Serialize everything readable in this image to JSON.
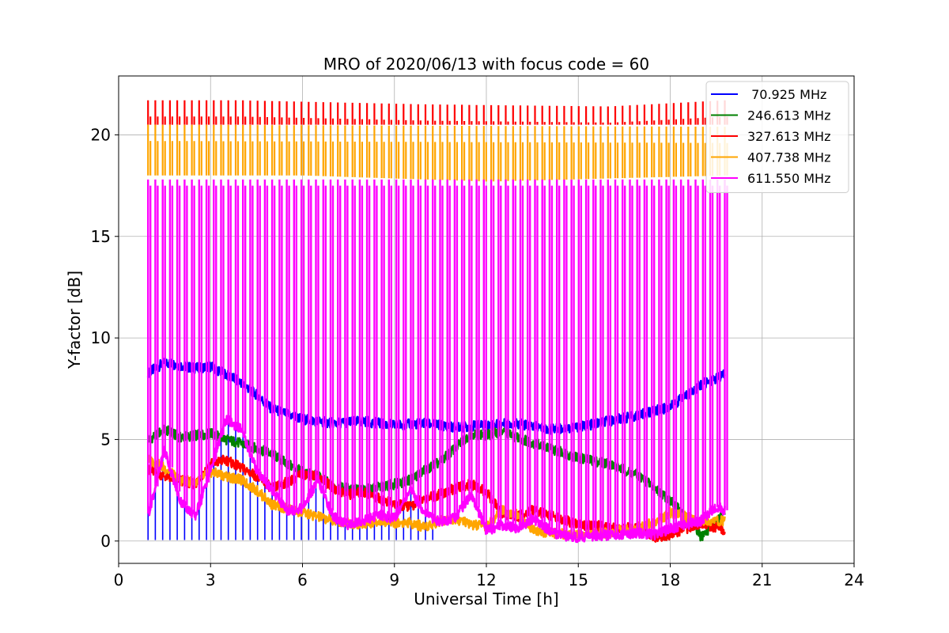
{
  "chart_data": {
    "type": "line",
    "title": "MRO of 2020/06/13 with focus code = 60",
    "xlabel": "Universal Time [h]",
    "ylabel": "Y-factor [dB]",
    "xlim": [
      0,
      24
    ],
    "ylim": [
      -1.1,
      22.9
    ],
    "xticks": [
      0,
      3,
      6,
      9,
      12,
      15,
      18,
      21,
      24
    ],
    "yticks": [
      0,
      5,
      10,
      15,
      20
    ],
    "grid": true,
    "legend_position": "top-right",
    "pulse": {
      "start_hour": 0.96,
      "end_hour": 19.78,
      "count": 80
    },
    "series": [
      {
        "name": " 70.925 MHz",
        "color": "#0000ff",
        "baseline_x": [
          1.0,
          1.5,
          2.5,
          3.0,
          3.5,
          4.0,
          4.5,
          5.0,
          6.0,
          7.0,
          8.0,
          9.0,
          10.0,
          11.0,
          12.0,
          13.0,
          14.0,
          15.0,
          16.0,
          17.0,
          18.0,
          19.0,
          19.8
        ],
        "baseline_y": [
          8.3,
          8.8,
          8.5,
          8.6,
          8.2,
          7.8,
          7.2,
          6.5,
          6.0,
          5.8,
          5.9,
          5.7,
          5.8,
          5.6,
          5.7,
          5.8,
          5.5,
          5.6,
          5.9,
          6.2,
          6.6,
          7.7,
          8.2
        ],
        "pulse_low": 0.05,
        "pulse_low_until_hour": 10.3
      },
      {
        "name": "246.613 MHz",
        "color": "#008000",
        "baseline_x": [
          1.0,
          1.5,
          2.0,
          3.0,
          3.5,
          4.0,
          5.0,
          5.5,
          6.0,
          6.5,
          7.0,
          8.0,
          9.0,
          9.5,
          10.0,
          10.5,
          11.0,
          11.5,
          12.0,
          12.5,
          13.0,
          14.0,
          15.0,
          16.0,
          17.0,
          17.5,
          18.0,
          18.5,
          19.0,
          19.8
        ],
        "baseline_y": [
          5.0,
          5.5,
          5.1,
          5.3,
          5.0,
          4.8,
          4.3,
          3.8,
          3.4,
          3.2,
          2.7,
          2.5,
          2.8,
          3.0,
          3.5,
          3.9,
          4.6,
          5.3,
          5.2,
          5.4,
          5.1,
          4.6,
          4.1,
          3.8,
          3.2,
          2.6,
          2.0,
          1.2,
          0.2,
          1.4
        ]
      },
      {
        "name": "327.613 MHz",
        "color": "#ff0000",
        "baseline_x": [
          1.0,
          1.5,
          2.0,
          2.5,
          3.0,
          3.5,
          4.0,
          4.5,
          5.0,
          5.5,
          6.0,
          6.5,
          7.0,
          7.5,
          8.0,
          8.5,
          9.0,
          9.5,
          10.0,
          10.5,
          11.0,
          11.5,
          12.0,
          12.5,
          13.0,
          13.5,
          14.0,
          15.0,
          16.0,
          17.0,
          17.5,
          18.0,
          18.5,
          19.0,
          19.8
        ],
        "baseline_y": [
          3.5,
          3.2,
          3.0,
          2.8,
          3.8,
          4.0,
          3.6,
          3.2,
          2.6,
          2.9,
          3.3,
          3.2,
          2.6,
          2.3,
          2.4,
          2.1,
          1.8,
          1.7,
          2.1,
          2.3,
          2.6,
          2.8,
          2.4,
          1.4,
          1.2,
          1.5,
          1.3,
          0.8,
          0.7,
          0.6,
          0.2,
          0.3,
          0.6,
          0.9,
          0.5
        ]
      },
      {
        "name": "407.738 MHz",
        "color": "#ffa500",
        "baseline_x": [
          1.0,
          1.5,
          2.0,
          2.5,
          3.0,
          3.5,
          4.0,
          4.5,
          5.0,
          5.5,
          6.0,
          6.5,
          7.0,
          7.5,
          8.0,
          8.5,
          9.0,
          9.5,
          10.0,
          10.5,
          11.0,
          11.5,
          12.0,
          12.5,
          13.0,
          13.5,
          14.0,
          15.0,
          16.0,
          17.0,
          17.5,
          18.0,
          18.5,
          19.0,
          19.8
        ],
        "baseline_y": [
          4.0,
          3.6,
          3.0,
          2.9,
          3.4,
          3.2,
          3.0,
          2.5,
          1.8,
          1.6,
          1.4,
          1.2,
          1.0,
          0.9,
          0.8,
          1.0,
          0.9,
          0.9,
          0.7,
          1.0,
          1.1,
          0.8,
          0.7,
          1.5,
          1.3,
          0.6,
          0.4,
          0.3,
          0.4,
          0.7,
          0.9,
          1.4,
          1.2,
          1.0,
          1.0
        ]
      },
      {
        "name": "611.550 MHz",
        "color": "#ff00ff",
        "baseline_x": [
          1.0,
          1.5,
          2.0,
          2.5,
          3.0,
          3.5,
          4.0,
          4.5,
          5.0,
          5.5,
          6.0,
          6.5,
          7.0,
          7.5,
          8.0,
          8.5,
          9.0,
          9.5,
          10.0,
          10.5,
          11.0,
          11.5,
          12.0,
          12.5,
          13.0,
          13.5,
          14.0,
          14.5,
          15.0,
          16.0,
          17.0,
          17.5,
          18.0,
          18.5,
          19.0,
          19.5,
          19.8
        ],
        "baseline_y": [
          1.5,
          4.5,
          2.0,
          1.2,
          3.5,
          6.0,
          5.5,
          3.5,
          2.5,
          1.5,
          1.6,
          3.0,
          1.2,
          0.8,
          1.0,
          1.3,
          1.1,
          2.5,
          1.4,
          0.9,
          1.2,
          2.3,
          0.5,
          0.8,
          0.6,
          1.1,
          0.6,
          0.2,
          0.2,
          0.3,
          0.4,
          0.3,
          0.6,
          0.8,
          1.0,
          1.7,
          1.5
        ],
        "pulse_high": 17.8
      }
    ],
    "envelopes": [
      {
        "name": "327.613 MHz",
        "color": "#ff0000",
        "top_x": [
          1.0,
          4.0,
          10.0,
          16.0,
          19.8
        ],
        "top_y": [
          21.7,
          21.7,
          21.5,
          21.4,
          21.7
        ],
        "base_y": 20.5
      },
      {
        "name": "407.738 MHz",
        "color": "#ffa500",
        "top_x": [
          1.0,
          19.8
        ],
        "top_y": [
          20.5,
          20.4
        ],
        "base_x": [
          1.0,
          6.0,
          12.0,
          19.8
        ],
        "base_y": [
          18.0,
          18.0,
          17.7,
          18.0
        ]
      }
    ]
  }
}
